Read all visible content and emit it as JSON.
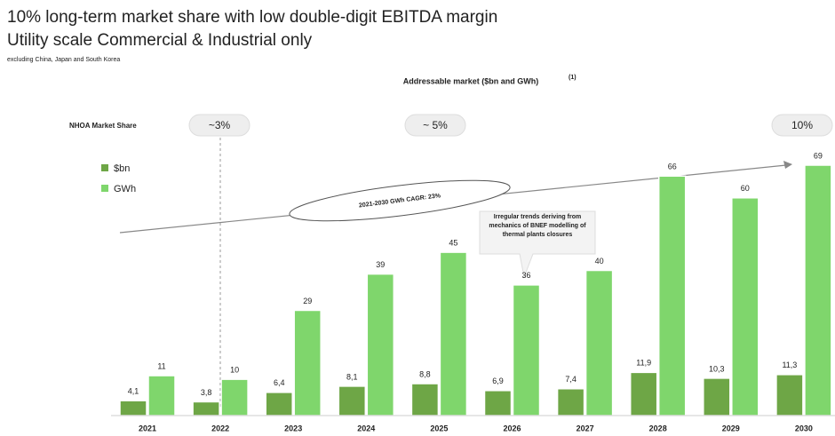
{
  "chart_data": {
    "type": "bar",
    "title": "10% long-term market share with low double-digit EBITDA margin",
    "subtitle": "Utility scale Commercial & Industrial only",
    "note": "excluding China, Japan and South Korea",
    "chart_title": "Addressable market ($bn and GWh)",
    "footnote_marker": "(1)",
    "market_share_label": "NHOA Market Share",
    "market_share": [
      "~3%",
      "~ 5%",
      "10%"
    ],
    "cagr_label": "2021-2030 GWh CAGR: 23%",
    "annotation": "Irregular trends deriving from mechanics of BNEF modelling of thermal plants closures",
    "categories": [
      "2021",
      "2022",
      "2023",
      "2024",
      "2025",
      "2026",
      "2027",
      "2028",
      "2029",
      "2030"
    ],
    "series": [
      {
        "name": "$bn",
        "color": "#6ea646",
        "values": [
          4.1,
          3.8,
          6.4,
          8.1,
          8.8,
          6.9,
          7.4,
          11.9,
          10.3,
          11.3
        ],
        "value_labels": [
          "4,1",
          "3,8",
          "6,4",
          "8,1",
          "8,8",
          "6,9",
          "7,4",
          "11,9",
          "10,3",
          "11,3"
        ]
      },
      {
        "name": "GWh",
        "color": "#7fd66c",
        "values": [
          11,
          10,
          29,
          39,
          45,
          36,
          40,
          66,
          60,
          69
        ]
      }
    ]
  }
}
